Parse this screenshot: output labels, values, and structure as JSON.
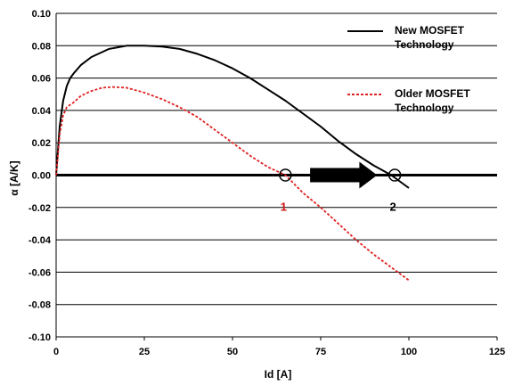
{
  "chart_data": {
    "type": "line",
    "xlabel": "Id [A]",
    "ylabel": "α [A/K]",
    "xlim": [
      0,
      125
    ],
    "ylim": [
      -0.1,
      0.1
    ],
    "x_ticks": [
      "0",
      "25",
      "50",
      "75",
      "100",
      "125"
    ],
    "y_ticks": [
      "0.10",
      "0.08",
      "0.06",
      "0.04",
      "0.02",
      "0.00",
      "-0.02",
      "-0.04",
      "-0.06",
      "-0.08",
      "-0.10"
    ],
    "grid": "horizontal",
    "legend_position": "top-right",
    "series": [
      {
        "name": "New MOSFET Technology",
        "color": "#000000",
        "style": "solid",
        "points": [
          [
            0,
            0
          ],
          [
            1,
            0.03
          ],
          [
            2,
            0.046
          ],
          [
            3,
            0.055
          ],
          [
            4,
            0.06
          ],
          [
            5,
            0.063
          ],
          [
            7,
            0.068
          ],
          [
            10,
            0.073
          ],
          [
            15,
            0.078
          ],
          [
            20,
            0.08
          ],
          [
            25,
            0.08
          ],
          [
            30,
            0.0795
          ],
          [
            35,
            0.078
          ],
          [
            40,
            0.075
          ],
          [
            45,
            0.071
          ],
          [
            50,
            0.066
          ],
          [
            55,
            0.06
          ],
          [
            60,
            0.053
          ],
          [
            65,
            0.046
          ],
          [
            70,
            0.038
          ],
          [
            75,
            0.03
          ],
          [
            80,
            0.021
          ],
          [
            85,
            0.013
          ],
          [
            90,
            0.006
          ],
          [
            95,
            0.0
          ],
          [
            100,
            -0.008
          ]
        ]
      },
      {
        "name": "Older MOSFET Technology",
        "color": "#e02020",
        "style": "dashed",
        "points": [
          [
            0,
            0
          ],
          [
            1,
            0.025
          ],
          [
            2,
            0.037
          ],
          [
            3,
            0.042
          ],
          [
            5,
            0.045
          ],
          [
            7,
            0.049
          ],
          [
            10,
            0.052
          ],
          [
            13,
            0.054
          ],
          [
            16,
            0.0545
          ],
          [
            20,
            0.054
          ],
          [
            25,
            0.051
          ],
          [
            30,
            0.047
          ],
          [
            35,
            0.042
          ],
          [
            40,
            0.036
          ],
          [
            45,
            0.028
          ],
          [
            50,
            0.02
          ],
          [
            55,
            0.012
          ],
          [
            60,
            0.005
          ],
          [
            65,
            0.0
          ],
          [
            70,
            -0.011
          ],
          [
            75,
            -0.02
          ],
          [
            80,
            -0.03
          ],
          [
            85,
            -0.04
          ],
          [
            90,
            -0.049
          ],
          [
            95,
            -0.057
          ],
          [
            100,
            -0.065
          ]
        ]
      }
    ],
    "markers": [
      {
        "x": 65,
        "y": 0.0,
        "label": "1",
        "label_color": "#d01010"
      },
      {
        "x": 96,
        "y": 0.0,
        "label": "2",
        "label_color": "#000000"
      }
    ],
    "arrow": {
      "from_x": 72,
      "to_x": 91,
      "y": 0.0
    }
  }
}
